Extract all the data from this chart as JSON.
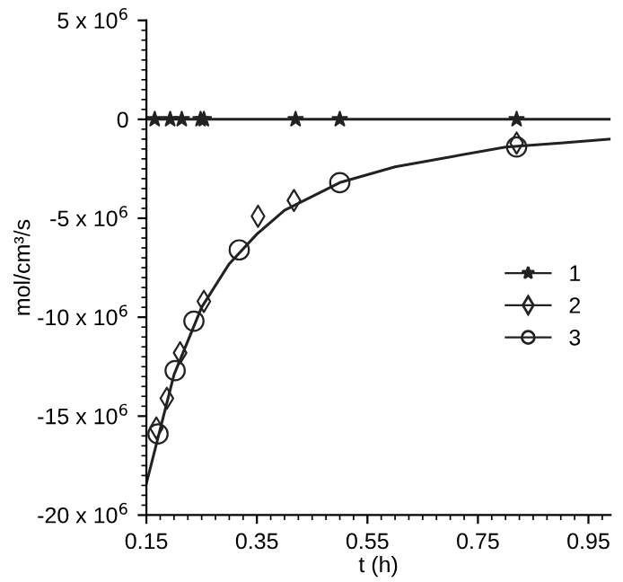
{
  "chart_data": {
    "type": "line",
    "xlabel": "t (h)",
    "ylabel": "mol/cm³/s",
    "xlim": [
      0.15,
      0.99
    ],
    "xticks": [
      0.15,
      0.35,
      0.55,
      0.75,
      0.95
    ],
    "ylim": [
      -20000000,
      5000000
    ],
    "yticks": [
      {
        "value": 5000000,
        "label": "5 x 10$^{6}$"
      },
      0,
      {
        "value": -5000000,
        "label": "-5 x 10$^{6}$"
      },
      {
        "value": -10000000,
        "label": "-10 x 10$^{6}$"
      },
      {
        "value": -15000000,
        "label": "-15 x 10$^{6}$"
      },
      {
        "value": -20000000,
        "label": "-20 x 10$^{6}$"
      }
    ],
    "grid": false,
    "legend": "right",
    "series": [
      {
        "color": "#222222",
        "marker": "none",
        "x": [
          0.15,
          0.99
        ],
        "values": [
          0,
          0
        ]
      },
      {
        "color": "#222222",
        "marker": "none",
        "x": [
          0.15,
          0.2,
          0.25,
          0.3,
          0.35,
          0.4,
          0.5,
          0.6,
          0.7,
          0.8,
          0.9,
          0.99
        ],
        "values": [
          -18400000,
          -12900000,
          -9500000,
          -7300000,
          -5800000,
          -4600000,
          -3200000,
          -2400000,
          -1900000,
          -1400000,
          -1200000,
          -1000000
        ]
      },
      {
        "type": "scatter",
        "name": "1",
        "color": "#222222",
        "marker": "star",
        "x": [
          0.165,
          0.193,
          0.214,
          0.248,
          0.254,
          0.42,
          0.5,
          0.82
        ],
        "values": [
          0,
          0,
          0,
          0,
          0,
          0,
          0,
          0
        ]
      },
      {
        "type": "scatter",
        "name": "2",
        "color": "#222222",
        "marker": "diamond",
        "x": [
          0.168,
          0.187,
          0.211,
          0.254,
          0.352,
          0.417,
          0.82
        ],
        "values": [
          -15600000,
          -14100000,
          -11800000,
          -9200000,
          -4900000,
          -4100000,
          -1200000
        ]
      },
      {
        "type": "scatter",
        "name": "3",
        "color": "#222222",
        "marker": "circle",
        "x": [
          0.171,
          0.202,
          0.236,
          0.318,
          0.5,
          0.82
        ],
        "values": [
          -15900000,
          -12700000,
          -10200000,
          -6600000,
          -3200000,
          -1400000
        ]
      }
    ]
  }
}
